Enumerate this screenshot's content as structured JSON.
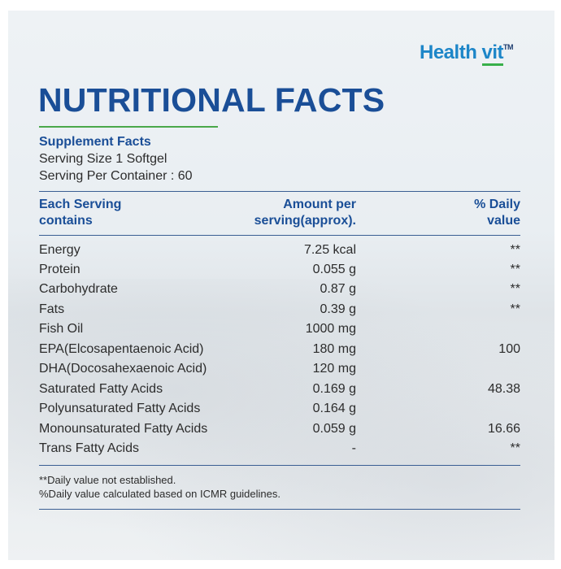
{
  "brand": {
    "health": "Health",
    "vit": "vit",
    "tm": "TM"
  },
  "title": "NUTRITIONAL FACTS",
  "supplement": {
    "heading": "Supplement Facts",
    "serving_size": "Serving Size 1 Softgel",
    "servings_per_container": "Serving Per Container : 60"
  },
  "table": {
    "headers": {
      "col1_line1": "Each Serving",
      "col1_line2": "contains",
      "col2_line1": "Amount per",
      "col2_line2": "serving(approx).",
      "col3_line1": "% Daily",
      "col3_line2": "value"
    },
    "rows": [
      {
        "name": "Energy",
        "amount": "7.25 kcal",
        "dv": "**"
      },
      {
        "name": "Protein",
        "amount": "0.055 g",
        "dv": "**"
      },
      {
        "name": "Carbohydrate",
        "amount": "0.87 g",
        "dv": "**"
      },
      {
        "name": "Fats",
        "amount": "0.39 g",
        "dv": "**"
      },
      {
        "name": "Fish Oil",
        "amount": "1000 mg",
        "dv": ""
      },
      {
        "name": "EPA(Elcosapentaenoic Acid)",
        "amount": "180 mg",
        "dv": "100"
      },
      {
        "name": "DHA(Docosahexaenoic Acid)",
        "amount": "120 mg",
        "dv": ""
      },
      {
        "name": "Saturated Fatty Acids",
        "amount": "0.169 g",
        "dv": "48.38"
      },
      {
        "name": "Polyunsaturated Fatty Acids",
        "amount": "0.164 g",
        "dv": ""
      },
      {
        "name": "Monounsaturated Fatty Acids",
        "amount": "0.059 g",
        "dv": "16.66"
      },
      {
        "name": "Trans Fatty Acids",
        "amount": "-",
        "dv": "**"
      }
    ]
  },
  "footnotes": {
    "note1": "**Daily value not established.",
    "note2": "%Daily value calculated based on ICMR guidelines."
  },
  "colors": {
    "title": "#1a4e97",
    "brand": "#1d86c8",
    "accent_green": "#4aa84a"
  }
}
